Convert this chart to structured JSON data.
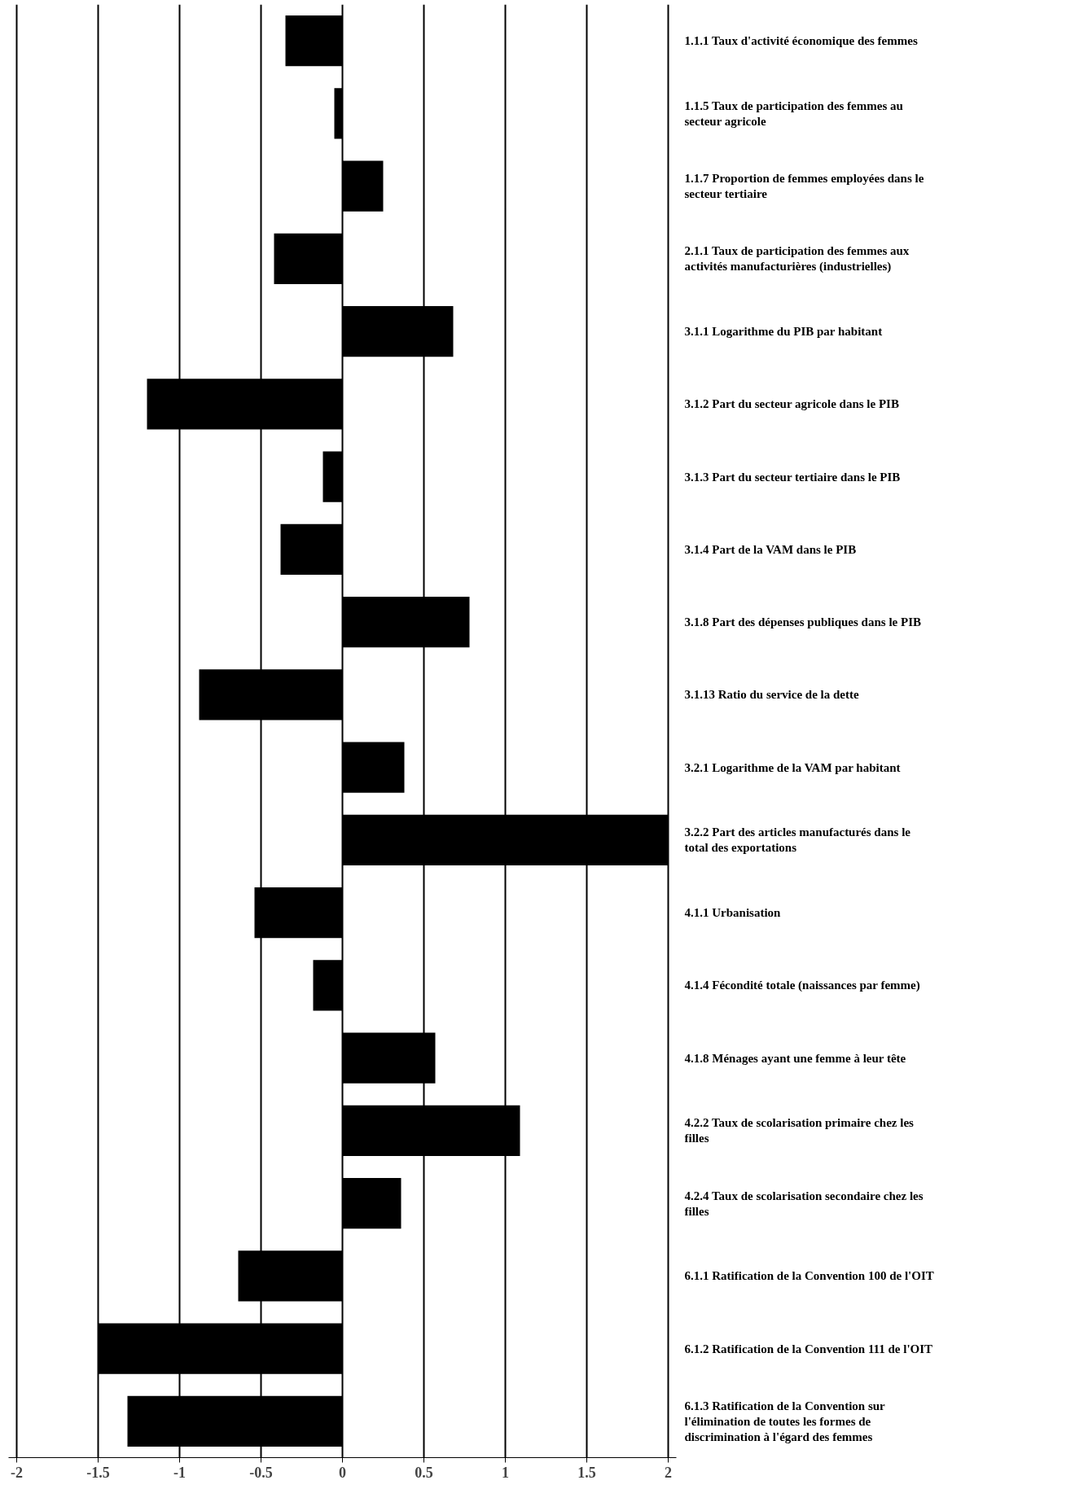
{
  "chart_data": {
    "type": "bar",
    "orientation": "horizontal",
    "categories": [
      "1.1.1 Taux d'activité économique des femmes",
      "1.1.5 Taux de participation des femmes au secteur agricole",
      "1.1.7 Proportion de femmes employées dans le secteur tertiaire",
      "2.1.1 Taux de participation des femmes aux activités manufacturières (industrielles)",
      "3.1.1 Logarithme du PIB par habitant",
      "3.1.2 Part du secteur agricole dans le PIB",
      "3.1.3 Part du secteur tertiaire dans le PIB",
      "3.1.4 Part de la VAM dans le PIB",
      "3.1.8 Part des dépenses publiques dans le PIB",
      "3.1.13 Ratio du service de la dette",
      "3.2.1 Logarithme de la VAM par habitant",
      "3.2.2 Part des articles manufacturés dans le total des exportations",
      "4.1.1 Urbanisation",
      "4.1.4 Fécondité totale (naissances par femme)",
      "4.1.8 Ménages ayant une femme à leur tête",
      "4.2.2 Taux de scolarisation primaire chez les filles",
      "4.2.4 Taux de scolarisation secondaire chez les filles",
      "6.1.1 Ratification de la Convention 100 de l'OIT",
      "6.1.2 Ratification de la Convention 111 de l'OIT",
      "6.1.3 Ratification de la Convention sur l'élimination de toutes les formes de discrimination à l'égard des femmes"
    ],
    "values": [
      -0.35,
      -0.05,
      0.25,
      -0.42,
      0.68,
      -1.2,
      -0.12,
      -0.38,
      0.78,
      -0.88,
      0.38,
      2.0,
      -0.54,
      -0.18,
      0.57,
      1.09,
      0.36,
      -0.64,
      -1.5,
      -1.32
    ],
    "color": "#000000",
    "xlim": [
      -2.05,
      2.05
    ],
    "xticks": [
      -2,
      -1.5,
      -1,
      -0.5,
      0,
      0.5,
      1,
      1.5,
      2
    ],
    "grid": "x"
  }
}
